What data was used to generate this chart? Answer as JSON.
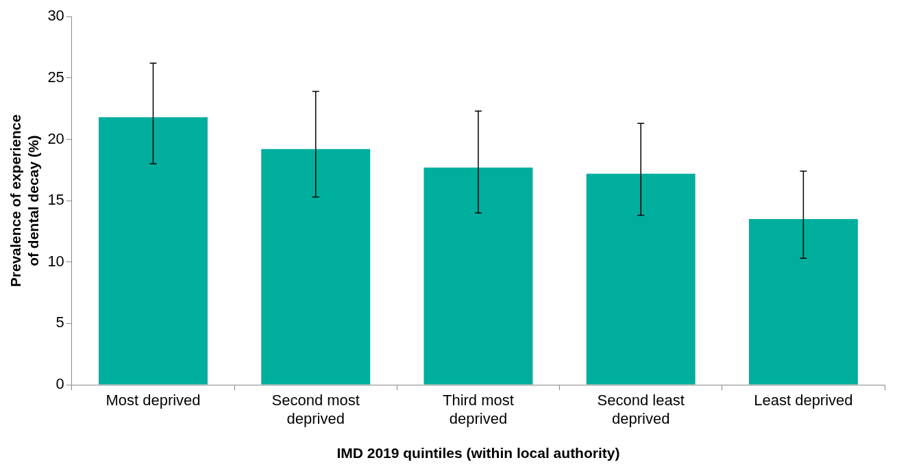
{
  "chart_data": {
    "type": "bar",
    "xlabel": "IMD 2019 quintiles (within local authority)",
    "ylabel": "Prevalence of experience of dental decay (%)",
    "categories": [
      "Most deprived",
      "Second most deprived",
      "Third most deprived",
      "Second least deprived",
      "Least deprived"
    ],
    "values": [
      21.8,
      19.2,
      17.7,
      17.2,
      13.5
    ],
    "errors": [
      [
        18.0,
        26.2
      ],
      [
        15.3,
        23.9
      ],
      [
        14.0,
        22.3
      ],
      [
        13.8,
        21.3
      ],
      [
        10.3,
        17.4
      ]
    ],
    "color": "#00ae9e",
    "ylim": [
      0,
      30
    ],
    "yticks": [
      0,
      5,
      10,
      15,
      20,
      25,
      30
    ],
    "grid": false,
    "legend": false
  }
}
